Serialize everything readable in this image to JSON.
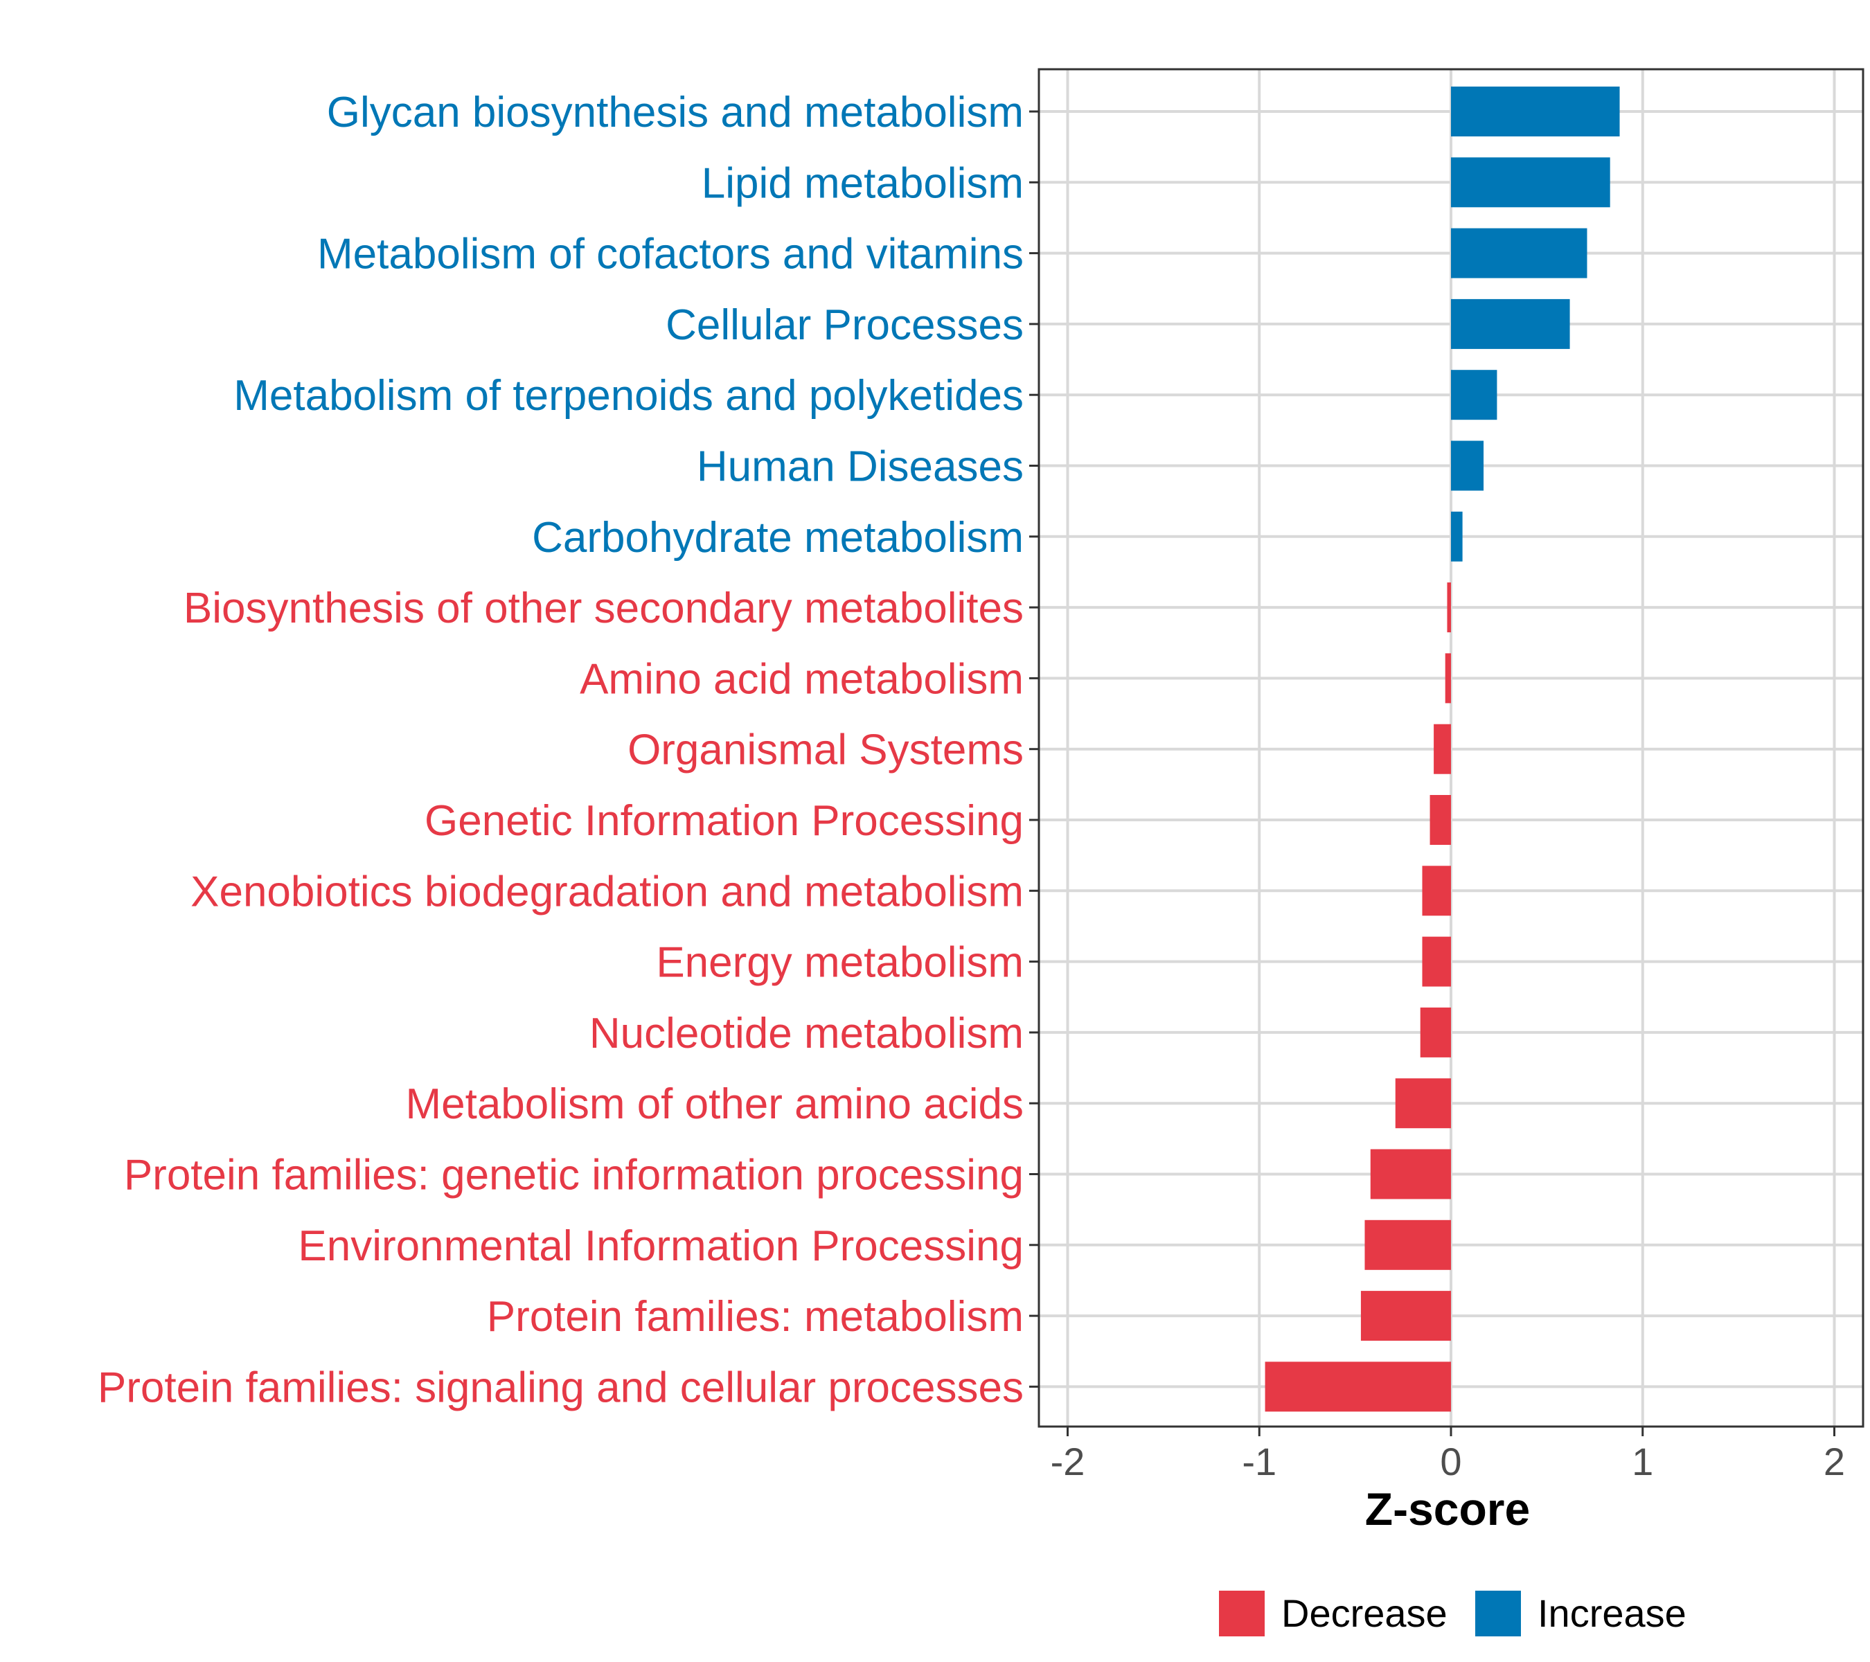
{
  "chart_data": {
    "type": "bar",
    "orientation": "horizontal",
    "categories": [
      "Glycan biosynthesis and metabolism",
      "Lipid metabolism",
      "Metabolism of cofactors and vitamins",
      "Cellular Processes",
      "Metabolism of terpenoids and polyketides",
      "Human Diseases",
      "Carbohydrate metabolism",
      "Biosynthesis of other secondary metabolites",
      "Amino acid metabolism",
      "Organismal Systems",
      "Genetic Information Processing",
      "Xenobiotics biodegradation and metabolism",
      "Energy metabolism",
      "Nucleotide metabolism",
      "Metabolism of other amino acids",
      "Protein families: genetic information processing",
      "Environmental Information Processing",
      "Protein families: metabolism",
      "Protein families: signaling and cellular processes"
    ],
    "values": [
      0.88,
      0.83,
      0.71,
      0.62,
      0.24,
      0.17,
      0.06,
      -0.02,
      -0.03,
      -0.09,
      -0.11,
      -0.15,
      -0.15,
      -0.16,
      -0.29,
      -0.42,
      -0.45,
      -0.47,
      -0.97
    ],
    "groups": [
      "Increase",
      "Increase",
      "Increase",
      "Increase",
      "Increase",
      "Increase",
      "Increase",
      "Decrease",
      "Decrease",
      "Decrease",
      "Decrease",
      "Decrease",
      "Decrease",
      "Decrease",
      "Decrease",
      "Decrease",
      "Decrease",
      "Decrease",
      "Decrease"
    ],
    "xlabel": "Z-score",
    "ylabel": "",
    "xlim": [
      -2.15,
      2.15
    ],
    "xticks": [
      -2,
      -1,
      0,
      1,
      2
    ],
    "xtick_labels": [
      "-2",
      "-1",
      "0",
      "1",
      "2"
    ],
    "grid": true,
    "legend": {
      "placement": "bottom",
      "entries": [
        {
          "label": "Decrease",
          "color": "#E63946"
        },
        {
          "label": "Increase",
          "color": "#0077B6"
        }
      ]
    }
  },
  "colors": {
    "Increase": "#0077B6",
    "Decrease": "#E63946",
    "grid": "#d9d9d9",
    "panel_border": "#333333"
  }
}
